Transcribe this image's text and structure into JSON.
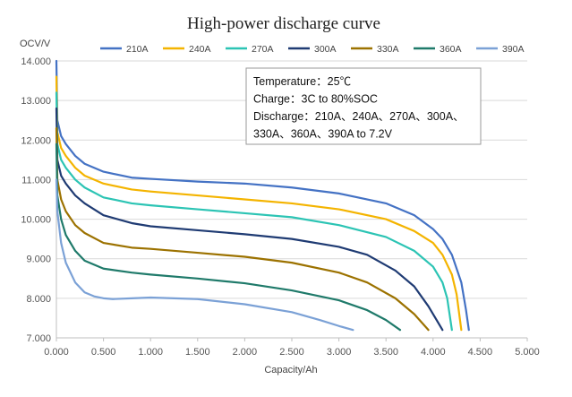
{
  "chart_data": {
    "type": "line",
    "title": "High-power discharge curve",
    "xlabel": "Capacity/Ah",
    "ylabel": "OCV/V",
    "xlim": [
      0,
      5
    ],
    "ylim": [
      7,
      14
    ],
    "xticks": [
      "0.000",
      "0.500",
      "1.000",
      "1.500",
      "2.000",
      "2.500",
      "3.000",
      "3.500",
      "4.000",
      "4.500",
      "5.000"
    ],
    "yticks": [
      "7.000",
      "8.000",
      "9.000",
      "10.000",
      "11.000",
      "12.000",
      "13.000",
      "14.000"
    ],
    "grid": "horizontal",
    "legend_position": "top",
    "annotation": [
      "Temperature：25℃",
      "Charge：3C to 80%SOC",
      "Discharge：210A、240A、270A、300A、",
      "330A、360A、390A  to 7.2V"
    ],
    "series": [
      {
        "name": "210A",
        "color": "#4472C4",
        "points": [
          [
            0,
            14.0
          ],
          [
            0.01,
            12.5
          ],
          [
            0.05,
            12.1
          ],
          [
            0.1,
            11.9
          ],
          [
            0.2,
            11.6
          ],
          [
            0.3,
            11.4
          ],
          [
            0.5,
            11.2
          ],
          [
            0.8,
            11.05
          ],
          [
            1.0,
            11.02
          ],
          [
            1.5,
            10.95
          ],
          [
            2.0,
            10.9
          ],
          [
            2.5,
            10.8
          ],
          [
            3.0,
            10.65
          ],
          [
            3.5,
            10.4
          ],
          [
            3.8,
            10.1
          ],
          [
            4.0,
            9.75
          ],
          [
            4.1,
            9.5
          ],
          [
            4.2,
            9.1
          ],
          [
            4.3,
            8.4
          ],
          [
            4.35,
            7.7
          ],
          [
            4.38,
            7.2
          ]
        ]
      },
      {
        "name": "240A",
        "color": "#F4B400",
        "points": [
          [
            0,
            13.6
          ],
          [
            0.01,
            12.2
          ],
          [
            0.05,
            11.8
          ],
          [
            0.1,
            11.6
          ],
          [
            0.2,
            11.3
          ],
          [
            0.3,
            11.1
          ],
          [
            0.5,
            10.9
          ],
          [
            0.8,
            10.75
          ],
          [
            1.0,
            10.7
          ],
          [
            1.5,
            10.6
          ],
          [
            2.0,
            10.5
          ],
          [
            2.5,
            10.4
          ],
          [
            3.0,
            10.25
          ],
          [
            3.5,
            10.0
          ],
          [
            3.8,
            9.7
          ],
          [
            4.0,
            9.4
          ],
          [
            4.1,
            9.1
          ],
          [
            4.2,
            8.6
          ],
          [
            4.25,
            8.1
          ],
          [
            4.3,
            7.2
          ]
        ]
      },
      {
        "name": "270A",
        "color": "#2CC4B4",
        "points": [
          [
            0,
            13.2
          ],
          [
            0.01,
            11.9
          ],
          [
            0.05,
            11.5
          ],
          [
            0.1,
            11.3
          ],
          [
            0.2,
            11.0
          ],
          [
            0.3,
            10.8
          ],
          [
            0.5,
            10.55
          ],
          [
            0.8,
            10.4
          ],
          [
            1.0,
            10.35
          ],
          [
            1.5,
            10.25
          ],
          [
            2.0,
            10.15
          ],
          [
            2.5,
            10.05
          ],
          [
            3.0,
            9.85
          ],
          [
            3.5,
            9.55
          ],
          [
            3.8,
            9.2
          ],
          [
            4.0,
            8.8
          ],
          [
            4.1,
            8.4
          ],
          [
            4.15,
            8.0
          ],
          [
            4.2,
            7.2
          ]
        ]
      },
      {
        "name": "300A",
        "color": "#1F3B73",
        "points": [
          [
            0,
            12.8
          ],
          [
            0.01,
            11.5
          ],
          [
            0.05,
            11.1
          ],
          [
            0.1,
            10.9
          ],
          [
            0.2,
            10.6
          ],
          [
            0.3,
            10.4
          ],
          [
            0.5,
            10.1
          ],
          [
            0.8,
            9.9
          ],
          [
            1.0,
            9.82
          ],
          [
            1.5,
            9.72
          ],
          [
            2.0,
            9.62
          ],
          [
            2.5,
            9.5
          ],
          [
            3.0,
            9.3
          ],
          [
            3.3,
            9.1
          ],
          [
            3.6,
            8.7
          ],
          [
            3.8,
            8.3
          ],
          [
            3.95,
            7.8
          ],
          [
            4.05,
            7.4
          ],
          [
            4.1,
            7.2
          ]
        ]
      },
      {
        "name": "330A",
        "color": "#9C7200",
        "points": [
          [
            0,
            12.3
          ],
          [
            0.01,
            11.0
          ],
          [
            0.05,
            10.5
          ],
          [
            0.1,
            10.2
          ],
          [
            0.2,
            9.85
          ],
          [
            0.3,
            9.65
          ],
          [
            0.5,
            9.4
          ],
          [
            0.8,
            9.28
          ],
          [
            1.0,
            9.25
          ],
          [
            1.5,
            9.15
          ],
          [
            2.0,
            9.05
          ],
          [
            2.5,
            8.9
          ],
          [
            3.0,
            8.65
          ],
          [
            3.3,
            8.4
          ],
          [
            3.6,
            8.0
          ],
          [
            3.8,
            7.6
          ],
          [
            3.95,
            7.2
          ]
        ]
      },
      {
        "name": "360A",
        "color": "#1F7A6A",
        "points": [
          [
            0,
            11.9
          ],
          [
            0.01,
            10.6
          ],
          [
            0.05,
            10.0
          ],
          [
            0.1,
            9.6
          ],
          [
            0.2,
            9.2
          ],
          [
            0.3,
            8.95
          ],
          [
            0.5,
            8.75
          ],
          [
            0.8,
            8.65
          ],
          [
            1.0,
            8.6
          ],
          [
            1.5,
            8.5
          ],
          [
            2.0,
            8.38
          ],
          [
            2.5,
            8.2
          ],
          [
            3.0,
            7.95
          ],
          [
            3.3,
            7.7
          ],
          [
            3.5,
            7.45
          ],
          [
            3.65,
            7.2
          ]
        ]
      },
      {
        "name": "390A",
        "color": "#7BA1D6",
        "points": [
          [
            0,
            11.0
          ],
          [
            0.01,
            10.2
          ],
          [
            0.05,
            9.4
          ],
          [
            0.1,
            8.9
          ],
          [
            0.2,
            8.4
          ],
          [
            0.3,
            8.15
          ],
          [
            0.4,
            8.05
          ],
          [
            0.5,
            8.0
          ],
          [
            0.6,
            7.98
          ],
          [
            0.8,
            8.0
          ],
          [
            1.0,
            8.02
          ],
          [
            1.5,
            7.98
          ],
          [
            2.0,
            7.85
          ],
          [
            2.5,
            7.65
          ],
          [
            2.8,
            7.45
          ],
          [
            3.0,
            7.3
          ],
          [
            3.15,
            7.2
          ]
        ]
      }
    ]
  }
}
